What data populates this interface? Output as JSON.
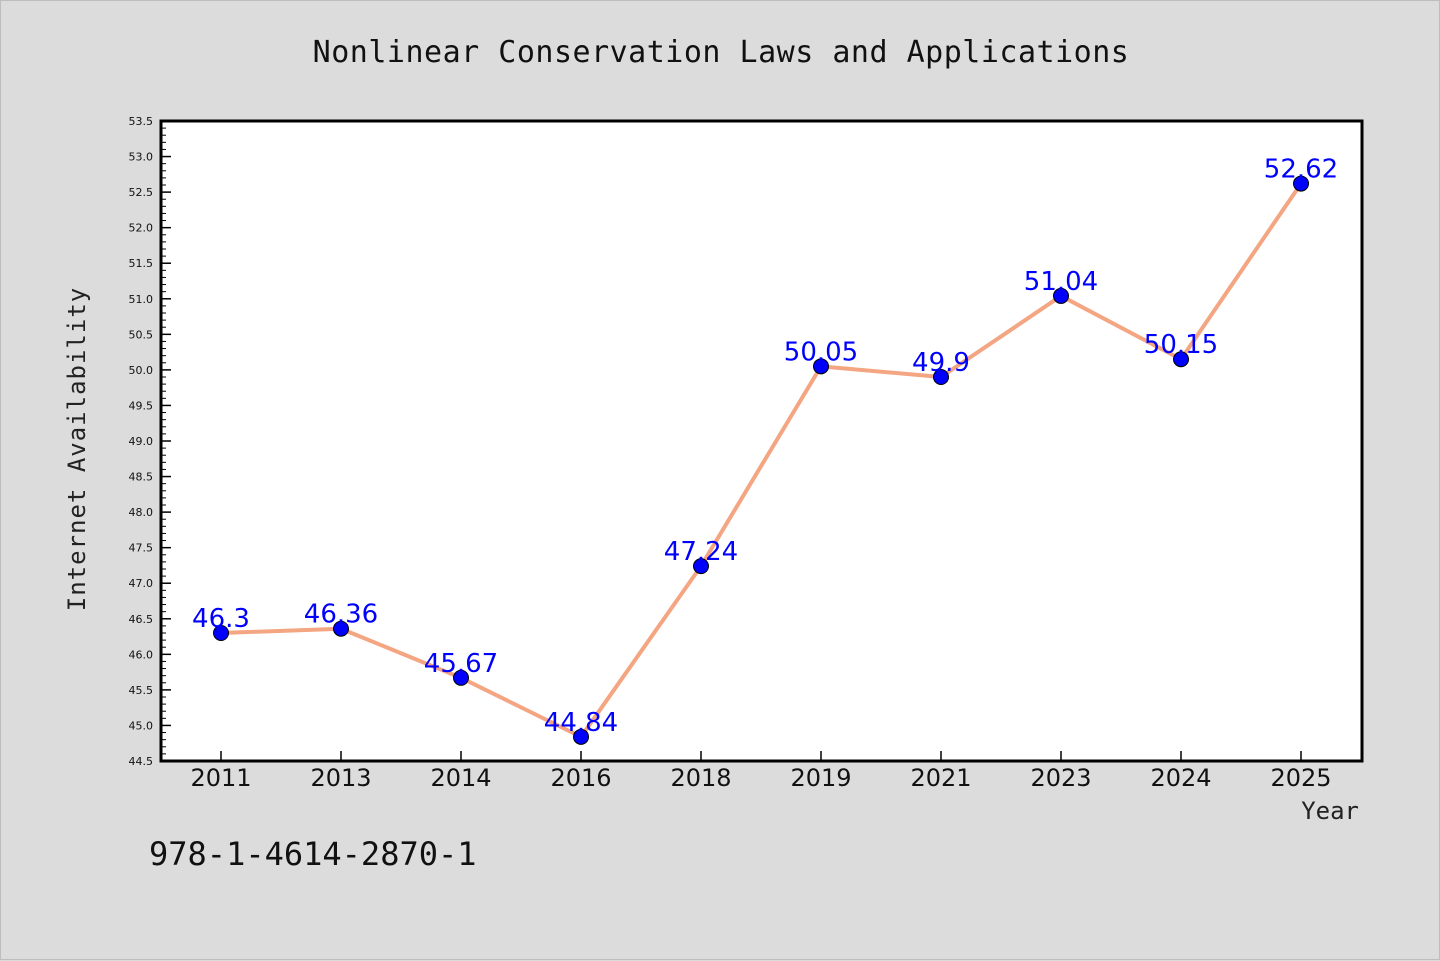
{
  "title": "Nonlinear Conservation Laws and Applications",
  "footer_text": "978-1-4614-2870-1",
  "colors": {
    "background": "#dcdcdc",
    "plot_background": "#ffffff",
    "line": "#f4a582",
    "marker": "#0000ff",
    "data_label": "#0000ff"
  },
  "chart_data": {
    "type": "line",
    "title": "Nonlinear Conservation Laws and Applications",
    "xlabel": "Year",
    "ylabel": "Internet Availability",
    "categories": [
      "2011",
      "2013",
      "2014",
      "2016",
      "2018",
      "2019",
      "2021",
      "2023",
      "2024",
      "2025"
    ],
    "series": [
      {
        "values": [
          46.3,
          46.36,
          45.67,
          44.84,
          47.24,
          50.05,
          49.9,
          51.04,
          50.15,
          52.62
        ]
      }
    ],
    "data_labels": [
      "46.3",
      "46.36",
      "45.67",
      "44.84",
      "47.24",
      "50.05",
      "49.9",
      "51.04",
      "50.15",
      "52.62"
    ],
    "ylim": [
      44.5,
      53.5
    ],
    "yticks": [
      "44.5",
      "45.0",
      "45.5",
      "46.0",
      "46.5",
      "47.0",
      "47.5",
      "48.0",
      "48.5",
      "49.0",
      "49.5",
      "50.0",
      "50.5",
      "51.0",
      "51.5",
      "52.0",
      "52.5",
      "53.0",
      "53.5"
    ],
    "ytick_step": 0.5,
    "grid": false,
    "legend": "none"
  }
}
